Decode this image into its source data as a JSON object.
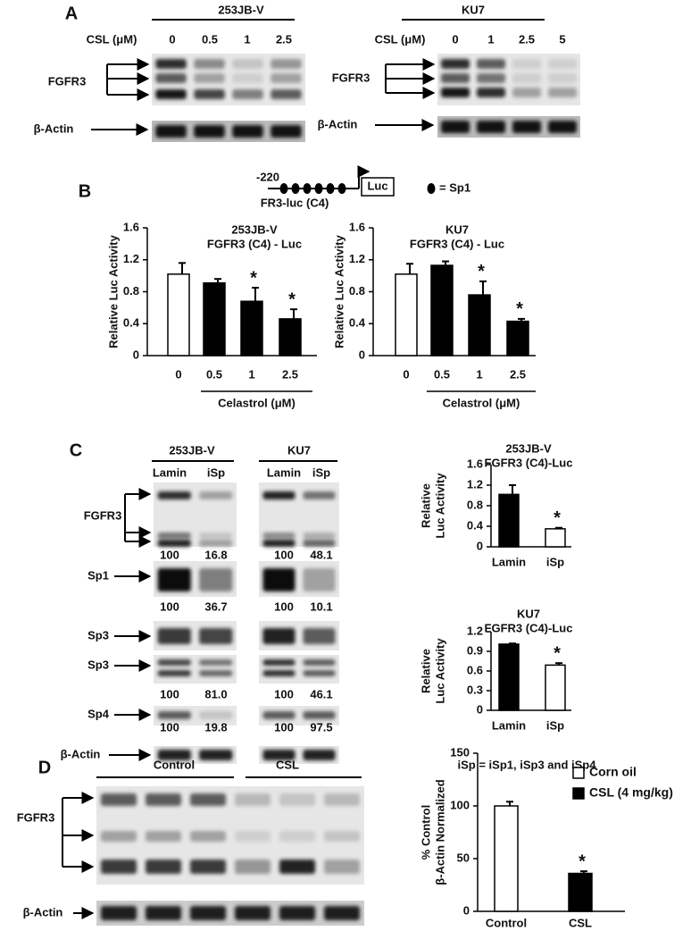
{
  "panel_labels": [
    "A",
    "B",
    "C",
    "D"
  ],
  "panel_a": [
    {
      "cell_line": "253JB-V",
      "dose_label": "CSL (μM)",
      "doses": [
        "0",
        "0.5",
        "1",
        "2.5"
      ],
      "target": "FGFR3",
      "loading": "β-Actin"
    },
    {
      "cell_line": "KU7",
      "dose_label": "CSL (μM)",
      "doses": [
        "0",
        "1",
        "2.5",
        "5"
      ],
      "target": "FGFR3",
      "loading": "β-Actin"
    }
  ],
  "construct": {
    "position": "-220",
    "reporter": "Luc",
    "name": "FR3-luc (C4)",
    "legend": "= Sp1"
  },
  "panel_c": {
    "cell_lines": [
      "253JB-V",
      "KU7"
    ],
    "lanes": [
      "Lamin",
      "iSp",
      "Lamin",
      "iSp"
    ],
    "rows": [
      {
        "label": "FGFR3",
        "quant": [
          "100",
          "16.8",
          "100",
          "48.1"
        ]
      },
      {
        "label": "Sp1",
        "quant": [
          "100",
          "36.7",
          "100",
          "10.1"
        ]
      },
      {
        "label": "Sp3"
      },
      {
        "label": "Sp3",
        "quant": [
          "100",
          "81.0",
          "100",
          "46.1"
        ]
      },
      {
        "label": "Sp4",
        "quant": [
          "100",
          "19.8",
          "100",
          "97.5"
        ]
      },
      {
        "label": "β-Actin"
      }
    ],
    "note": "iSp = iSp1, iSp3 and iSp4"
  },
  "panel_d": {
    "groups": [
      "Control",
      "CSL"
    ],
    "target": "FGFR3",
    "loading": "β-Actin"
  },
  "chart_data": [
    {
      "type": "bar",
      "title": [
        "253JB-V",
        "FGFR3 (C4) - Luc"
      ],
      "ylabel": [
        "Relative Luc Activity"
      ],
      "xlabel": "Celastrol (μM)",
      "categories": [
        "0",
        "0.5",
        "1",
        "2.5"
      ],
      "values": [
        1.02,
        0.91,
        0.68,
        0.46
      ],
      "errors": [
        0.14,
        0.05,
        0.17,
        0.12
      ],
      "colors": [
        "#ffffff",
        "#000000",
        "#000000",
        "#000000"
      ],
      "significance": [
        null,
        null,
        "*",
        "*"
      ],
      "ylim": [
        0,
        1.6
      ],
      "yticks": [
        0,
        0.4,
        0.8,
        1.2,
        1.6
      ]
    },
    {
      "type": "bar",
      "title": [
        "KU7",
        "FGFR3 (C4) - Luc"
      ],
      "ylabel": [
        "Relative Luc Activity"
      ],
      "xlabel": "Celastrol (μM)",
      "categories": [
        "0",
        "0.5",
        "1",
        "2.5"
      ],
      "values": [
        1.02,
        1.13,
        0.76,
        0.43
      ],
      "errors": [
        0.13,
        0.05,
        0.17,
        0.03
      ],
      "colors": [
        "#ffffff",
        "#000000",
        "#000000",
        "#000000"
      ],
      "significance": [
        null,
        null,
        "*",
        "*"
      ],
      "ylim": [
        0,
        1.6
      ],
      "yticks": [
        0,
        0.4,
        0.8,
        1.2,
        1.6
      ]
    },
    {
      "type": "bar",
      "title": [
        "253JB-V",
        "FGFR3 (C4)-Luc"
      ],
      "ylabel": [
        "Relative",
        "Luc Activity"
      ],
      "categories": [
        "Lamin",
        "iSp"
      ],
      "values": [
        1.02,
        0.35
      ],
      "errors": [
        0.18,
        0.02
      ],
      "colors": [
        "#000000",
        "#ffffff"
      ],
      "significance": [
        null,
        "*"
      ],
      "ylim": [
        0,
        1.6
      ],
      "yticks": [
        0,
        0.4,
        0.8,
        1.2,
        1.6
      ]
    },
    {
      "type": "bar",
      "title": [
        "KU7",
        "FGFR3 (C4)-Luc"
      ],
      "ylabel": [
        "Relative",
        "Luc Activity"
      ],
      "categories": [
        "Lamin",
        "iSp"
      ],
      "values": [
        1.01,
        0.69
      ],
      "errors": [
        0.01,
        0.03
      ],
      "colors": [
        "#000000",
        "#ffffff"
      ],
      "significance": [
        null,
        "*"
      ],
      "ylim": [
        0,
        1.2
      ],
      "yticks": [
        0,
        0.3,
        0.6,
        0.9,
        1.2
      ]
    },
    {
      "type": "bar",
      "ylabel": [
        "% Control",
        "β-Actin Normalized"
      ],
      "categories": [
        "Control",
        "CSL"
      ],
      "values": [
        100,
        36
      ],
      "errors": [
        4,
        2
      ],
      "colors": [
        "#ffffff",
        "#000000"
      ],
      "significance": [
        null,
        "*"
      ],
      "legend": [
        {
          "name": "Corn oil",
          "color": "#ffffff"
        },
        {
          "name": "CSL (4 mg/kg)",
          "color": "#000000"
        }
      ],
      "ylim": [
        0,
        150
      ],
      "yticks": [
        0,
        50,
        100,
        150
      ]
    }
  ]
}
